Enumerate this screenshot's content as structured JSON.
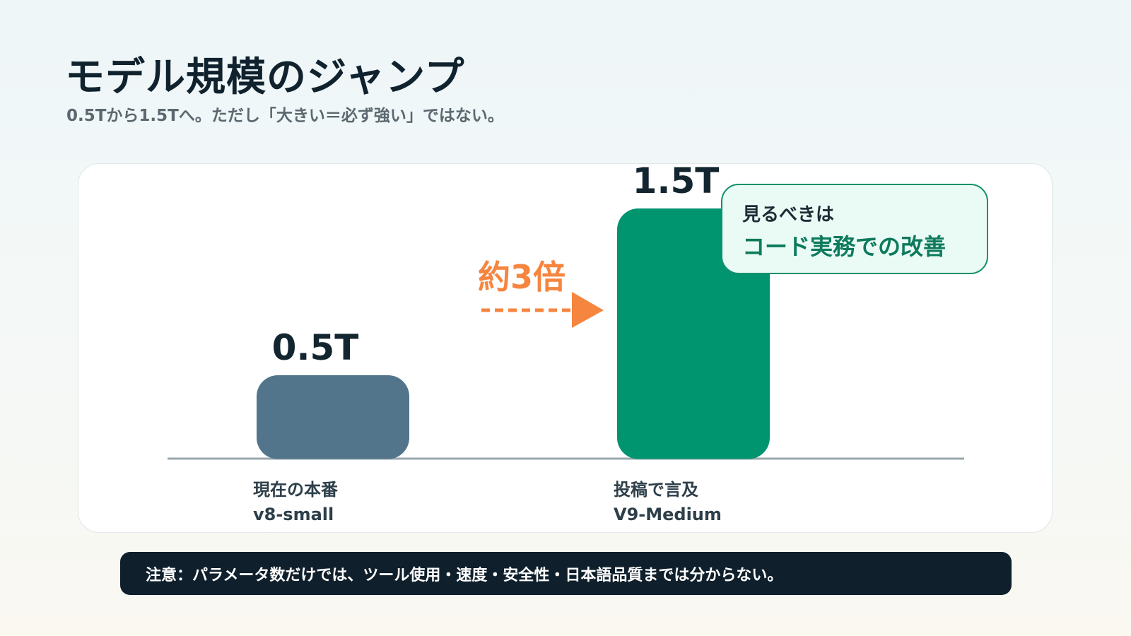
{
  "header": {
    "title": "モデル規模のジャンプ",
    "subtitle": "0.5Tから1.5Tへ。ただし「大きい＝必ず強い」ではない。"
  },
  "chart_data": {
    "type": "bar",
    "categories": [
      {
        "line1": "現在の本番",
        "line2": "v8-small"
      },
      {
        "line1": "投稿で言及",
        "line2": "V9-Medium"
      }
    ],
    "values": [
      0.5,
      1.5
    ],
    "value_labels": [
      "0.5T",
      "1.5T"
    ],
    "colors": [
      "#52758c",
      "#00946f"
    ],
    "ylim": [
      0,
      1.5
    ],
    "multiplier_label": "約3倍",
    "multiplier_color": "#f5853f",
    "callout": {
      "line1": "見るべきは",
      "line2": "コード実務での改善",
      "accent": "#0d7a5c"
    }
  },
  "note": {
    "text": "注意：パラメータ数だけでは、ツール使用・速度・安全性・日本語品質までは分からない。"
  }
}
